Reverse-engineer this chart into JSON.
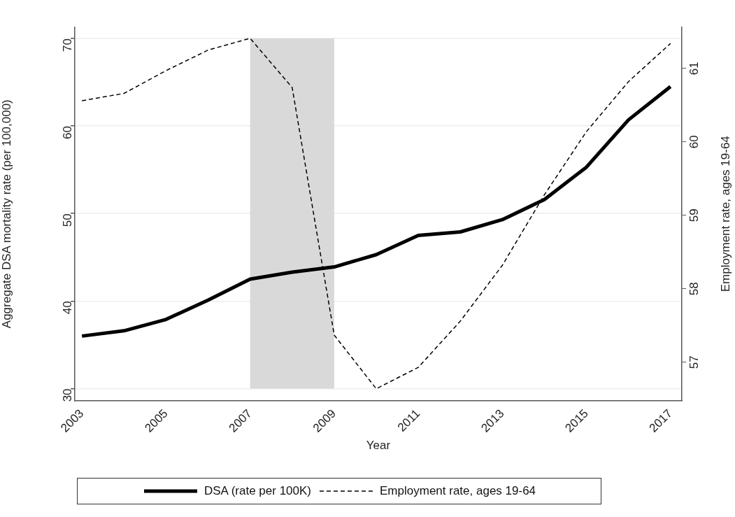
{
  "chart_data": {
    "type": "line",
    "xlabel": "Year",
    "ylabel": "Aggregate DSA mortality rate (per 100,000)",
    "y2label": "Employment rate, ages 19-64",
    "x": [
      2003,
      2004,
      2005,
      2006,
      2007,
      2008,
      2009,
      2010,
      2011,
      2012,
      2013,
      2014,
      2015,
      2016,
      2017
    ],
    "series": [
      {
        "name": "DSA (rate per 100K)",
        "color": "#000000",
        "line_style": "solid",
        "values": [
          36.0,
          36.6,
          37.9,
          40.1,
          42.5,
          43.3,
          43.9,
          45.3,
          47.5,
          47.9,
          49.3,
          51.6,
          55.3,
          60.7,
          64.5
        ]
      },
      {
        "name": "Employment rate, ages 19-64",
        "color": "#000000",
        "line_style": "dashed",
        "axis": "y2",
        "values": [
          60.56,
          60.66,
          60.97,
          61.25,
          61.41,
          60.74,
          57.37,
          56.64,
          56.93,
          57.56,
          58.32,
          59.28,
          60.14,
          60.82,
          61.34
        ]
      }
    ],
    "xlim": [
      2002.83,
      2017.27
    ],
    "xticks": [
      2003,
      2005,
      2007,
      2009,
      2011,
      2013,
      2015,
      2017
    ],
    "ylim": [
      28.64,
      71.28
    ],
    "yticks": [
      30,
      40,
      50,
      60,
      70
    ],
    "y2lim": [
      56.48,
      61.56
    ],
    "y2ticks": [
      57,
      58,
      59,
      60,
      61
    ],
    "bands": [
      {
        "axis": "x",
        "from": 2007,
        "to": 2009,
        "color": "#d9d9d9"
      }
    ],
    "grid": "y",
    "legend": "bottom",
    "marker": "none"
  }
}
